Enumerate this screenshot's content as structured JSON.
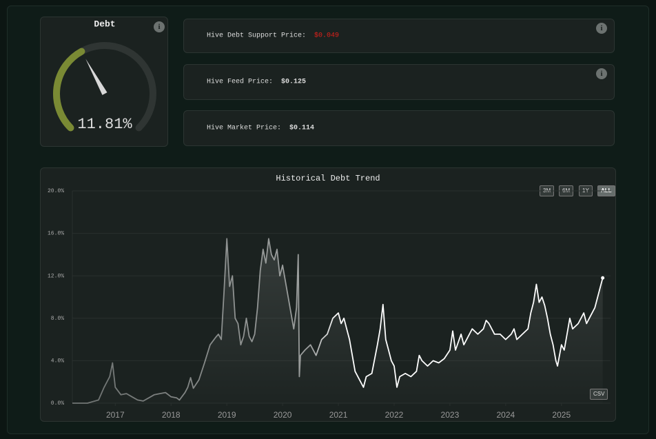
{
  "gauge": {
    "title": "Debt",
    "value": 11.81,
    "value_label": "11.81%",
    "range": [
      0,
      30
    ]
  },
  "cards": [
    {
      "label": "Hive Debt Support Price:",
      "value": "$0.049"
    },
    {
      "label": "Hive Feed Price:",
      "value": "$0.125"
    },
    {
      "label": "Hive Market Price:",
      "value": "$0.114"
    }
  ],
  "range_buttons": [
    "3M",
    "6M",
    "1Y",
    "ALL"
  ],
  "export_button": "CSV",
  "chart_data": {
    "type": "line",
    "title": "Historical Debt Trend",
    "color": "#ffffff",
    "x": [
      2016.23,
      2016.5,
      2016.7,
      2016.8,
      2016.9,
      2016.95,
      2017.0,
      2017.1,
      2017.2,
      2017.3,
      2017.4,
      2017.5,
      2017.6,
      2017.7,
      2017.8,
      2017.9,
      2018.0,
      2018.1,
      2018.15,
      2018.25,
      2018.3,
      2018.35,
      2018.4,
      2018.5,
      2018.6,
      2018.7,
      2018.8,
      2018.85,
      2018.9,
      2018.95,
      2019.0,
      2019.05,
      2019.1,
      2019.15,
      2019.2,
      2019.25,
      2019.3,
      2019.35,
      2019.4,
      2019.45,
      2019.5,
      2019.55,
      2019.6,
      2019.65,
      2019.7,
      2019.75,
      2019.8,
      2019.85,
      2019.9,
      2019.95,
      2020.0,
      2020.1,
      2020.2,
      2020.25,
      2020.28,
      2020.3,
      2020.32,
      2020.4,
      2020.5,
      2020.6,
      2020.7,
      2020.8,
      2020.9,
      2021.0,
      2021.05,
      2021.1,
      2021.2,
      2021.3,
      2021.4,
      2021.45,
      2021.5,
      2021.6,
      2021.7,
      2021.75,
      2021.8,
      2021.85,
      2021.9,
      2021.95,
      2022.0,
      2022.05,
      2022.1,
      2022.2,
      2022.3,
      2022.4,
      2022.45,
      2022.5,
      2022.6,
      2022.7,
      2022.8,
      2022.9,
      2023.0,
      2023.05,
      2023.1,
      2023.2,
      2023.25,
      2023.3,
      2023.4,
      2023.5,
      2023.6,
      2023.65,
      2023.7,
      2023.8,
      2023.9,
      2024.0,
      2024.1,
      2024.15,
      2024.2,
      2024.3,
      2024.4,
      2024.45,
      2024.5,
      2024.55,
      2024.6,
      2024.65,
      2024.7,
      2024.75,
      2024.8,
      2024.85,
      2024.9,
      2024.93,
      2025.0,
      2025.05,
      2025.1,
      2025.15,
      2025.2,
      2025.3,
      2025.4,
      2025.45,
      2025.5,
      2025.6,
      2025.7,
      2025.74
    ],
    "values": [
      0,
      0,
      0.3,
      1.5,
      2.5,
      3.8,
      1.5,
      0.8,
      0.9,
      0.6,
      0.3,
      0.2,
      0.5,
      0.8,
      0.9,
      1.0,
      0.6,
      0.5,
      0.3,
      1.0,
      1.5,
      2.4,
      1.4,
      2.2,
      3.8,
      5.5,
      6.2,
      6.5,
      6.0,
      10.5,
      15.5,
      11.0,
      12.0,
      8.0,
      7.5,
      5.5,
      6.3,
      8.0,
      6.3,
      5.8,
      6.5,
      9.0,
      12.5,
      14.5,
      13.2,
      15.5,
      14.0,
      13.5,
      14.5,
      12.0,
      13.0,
      10.0,
      7.0,
      9.0,
      14.0,
      2.5,
      4.5,
      5.0,
      5.5,
      4.5,
      6.0,
      6.5,
      8.0,
      8.5,
      7.5,
      8.0,
      6.0,
      3.0,
      2.0,
      1.5,
      2.5,
      2.8,
      5.5,
      7.0,
      9.3,
      6.0,
      5.0,
      4.0,
      3.5,
      1.5,
      2.5,
      2.8,
      2.5,
      3.0,
      4.5,
      4.0,
      3.5,
      4.0,
      3.8,
      4.2,
      5.0,
      6.8,
      5.0,
      6.5,
      5.5,
      6.0,
      7.0,
      6.5,
      7.0,
      7.8,
      7.5,
      6.5,
      6.5,
      6.0,
      6.5,
      7.0,
      6.0,
      6.5,
      7.0,
      8.5,
      9.5,
      11.2,
      9.5,
      10.0,
      9.2,
      8.0,
      6.5,
      5.5,
      4.0,
      3.5,
      5.5,
      5.0,
      6.5,
      8.0,
      7.0,
      7.5,
      8.5,
      7.5,
      8.0,
      9.0,
      11.0,
      11.8
    ],
    "xlim": [
      2016.23,
      2025.88
    ],
    "xticks": [
      2017,
      2018,
      2019,
      2020,
      2021,
      2022,
      2023,
      2024,
      2025
    ],
    "ylim": [
      0,
      20
    ],
    "yticks": [
      {
        "value": 0,
        "label": "0.0%"
      },
      {
        "value": 4,
        "label": "4.0%"
      },
      {
        "value": 8,
        "label": "8.0%"
      },
      {
        "value": 12,
        "label": "12.0%"
      },
      {
        "value": 16,
        "label": "16.0%"
      },
      {
        "value": 20,
        "label": "20.0%"
      }
    ],
    "grid": true
  }
}
